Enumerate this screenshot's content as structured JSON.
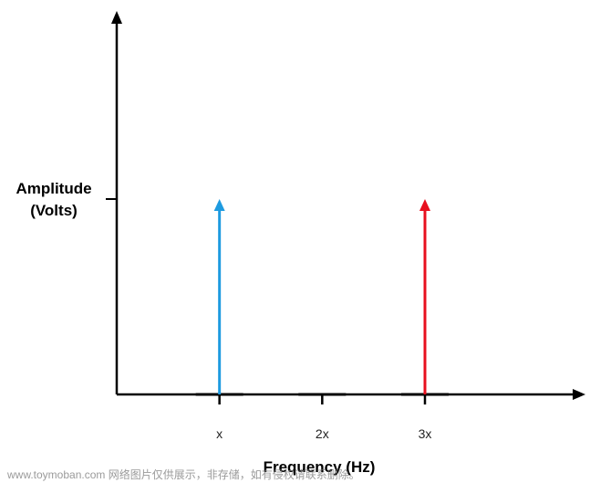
{
  "chart_data": {
    "type": "bar",
    "xlabel": "Frequency (Hz)",
    "ylabel_lines": [
      "Amplitude",
      "(Volts)"
    ],
    "categories": [
      "x",
      "2x",
      "3x"
    ],
    "x": [
      1,
      2,
      3
    ],
    "xlim": [
      0,
      4.5
    ],
    "ylim": [
      0,
      1
    ],
    "grid": false,
    "series": [
      {
        "values": [
          1,
          0,
          0
        ],
        "color": "#1e9be0"
      },
      {
        "values": [
          0,
          0,
          1
        ],
        "color": "#e8101e"
      }
    ]
  },
  "colors": {
    "axis": "#000000",
    "blue_arrow": "#1e9be0",
    "red_arrow": "#e8101e"
  },
  "watermark": "www.toymoban.com 网络图片仅供展示，非存储，如有侵权请联系删除。"
}
